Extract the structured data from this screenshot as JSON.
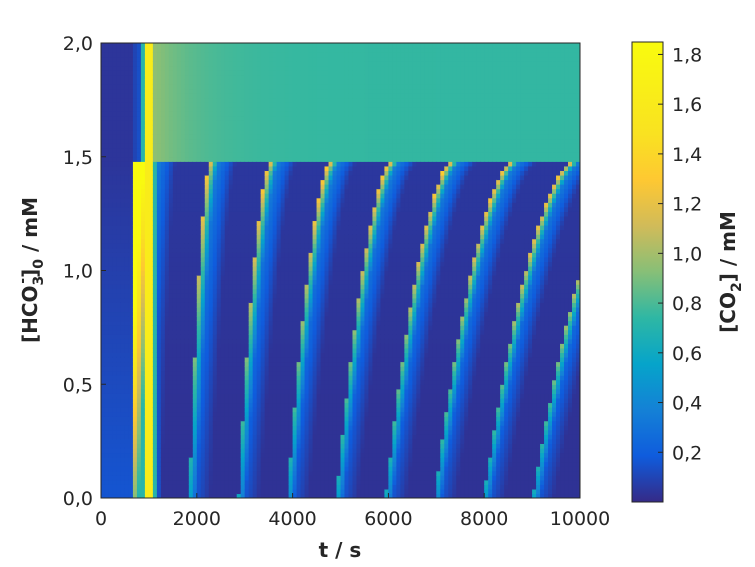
{
  "chart_data": {
    "type": "heatmap",
    "title": "",
    "xlabel": "t / s",
    "ylabel": "[HCO3-]0 / mM",
    "ylabel_parts": {
      "open": "[HCO",
      "sub": "3",
      "sup": "-",
      "close": "]",
      "sub2": "0",
      "rest": " / mM"
    },
    "xlim": [
      0,
      10000
    ],
    "ylim": [
      0,
      2.0
    ],
    "x_ticks": [
      0,
      2000,
      4000,
      6000,
      8000,
      10000
    ],
    "x_tick_labels": [
      "0",
      "2000",
      "4000",
      "6000",
      "8000",
      "10000"
    ],
    "y_ticks": [
      0,
      0.5,
      1.0,
      1.5,
      2.0
    ],
    "y_tick_labels": [
      "0,0",
      "0,5",
      "1,0",
      "1,5",
      "2,0"
    ],
    "colorbar": {
      "label": "[CO2] / mM",
      "label_parts": {
        "open": "[CO",
        "sub": "2",
        "rest": "] / mM"
      },
      "range": [
        0,
        1.85
      ],
      "ticks": [
        0.2,
        0.4,
        0.6,
        0.8,
        1.0,
        1.2,
        1.4,
        1.6,
        1.8
      ],
      "tick_labels": [
        "0,2",
        "0,4",
        "0,6",
        "0,8",
        "1,0",
        "1,2",
        "1,4",
        "1,6",
        "1,8"
      ],
      "colormap": "parula"
    },
    "features": {
      "oscillation_threshold_mM": 1.47,
      "steady_value_above_threshold_mM": 0.75,
      "first_spike_time_s": 1000,
      "first_spike_peak_mM": 1.8,
      "oscillation_period_s": 1250,
      "baseline_low_mM": 0.05
    }
  }
}
